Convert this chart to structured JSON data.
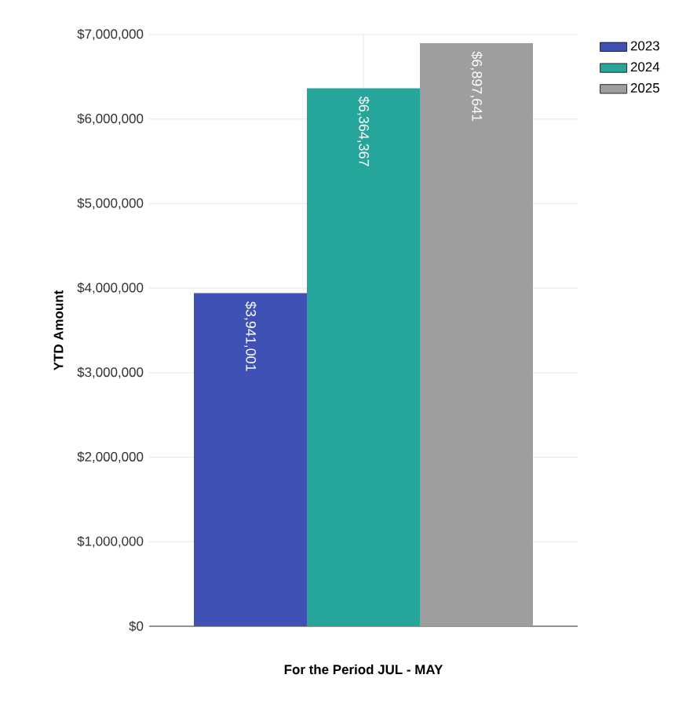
{
  "chart_data": {
    "type": "bar",
    "xlabel": "For the Period JUL - MAY",
    "ylabel": "YTD Amount",
    "categories": [
      null
    ],
    "series": [
      {
        "name": "2023",
        "color": "#3f51b5",
        "values": [
          3941001
        ],
        "value_labels": [
          "$3,941,001"
        ]
      },
      {
        "name": "2024",
        "color": "#26a69a",
        "values": [
          6364367
        ],
        "value_labels": [
          "$6,364,367"
        ]
      },
      {
        "name": "2025",
        "color": "#9e9e9e",
        "values": [
          6897641
        ],
        "value_labels": [
          "$6,897,641"
        ]
      }
    ],
    "ylim": [
      0,
      7000000
    ],
    "yticks": [
      {
        "value": 0,
        "label": "$0"
      },
      {
        "value": 1000000,
        "label": "$1,000,000"
      },
      {
        "value": 2000000,
        "label": "$2,000,000"
      },
      {
        "value": 3000000,
        "label": "$3,000,000"
      },
      {
        "value": 4000000,
        "label": "$4,000,000"
      },
      {
        "value": 5000000,
        "label": "$5,000,000"
      },
      {
        "value": 6000000,
        "label": "$6,000,000"
      },
      {
        "value": 7000000,
        "label": "$7,000,000"
      }
    ],
    "grid": true,
    "legend": "top right"
  }
}
